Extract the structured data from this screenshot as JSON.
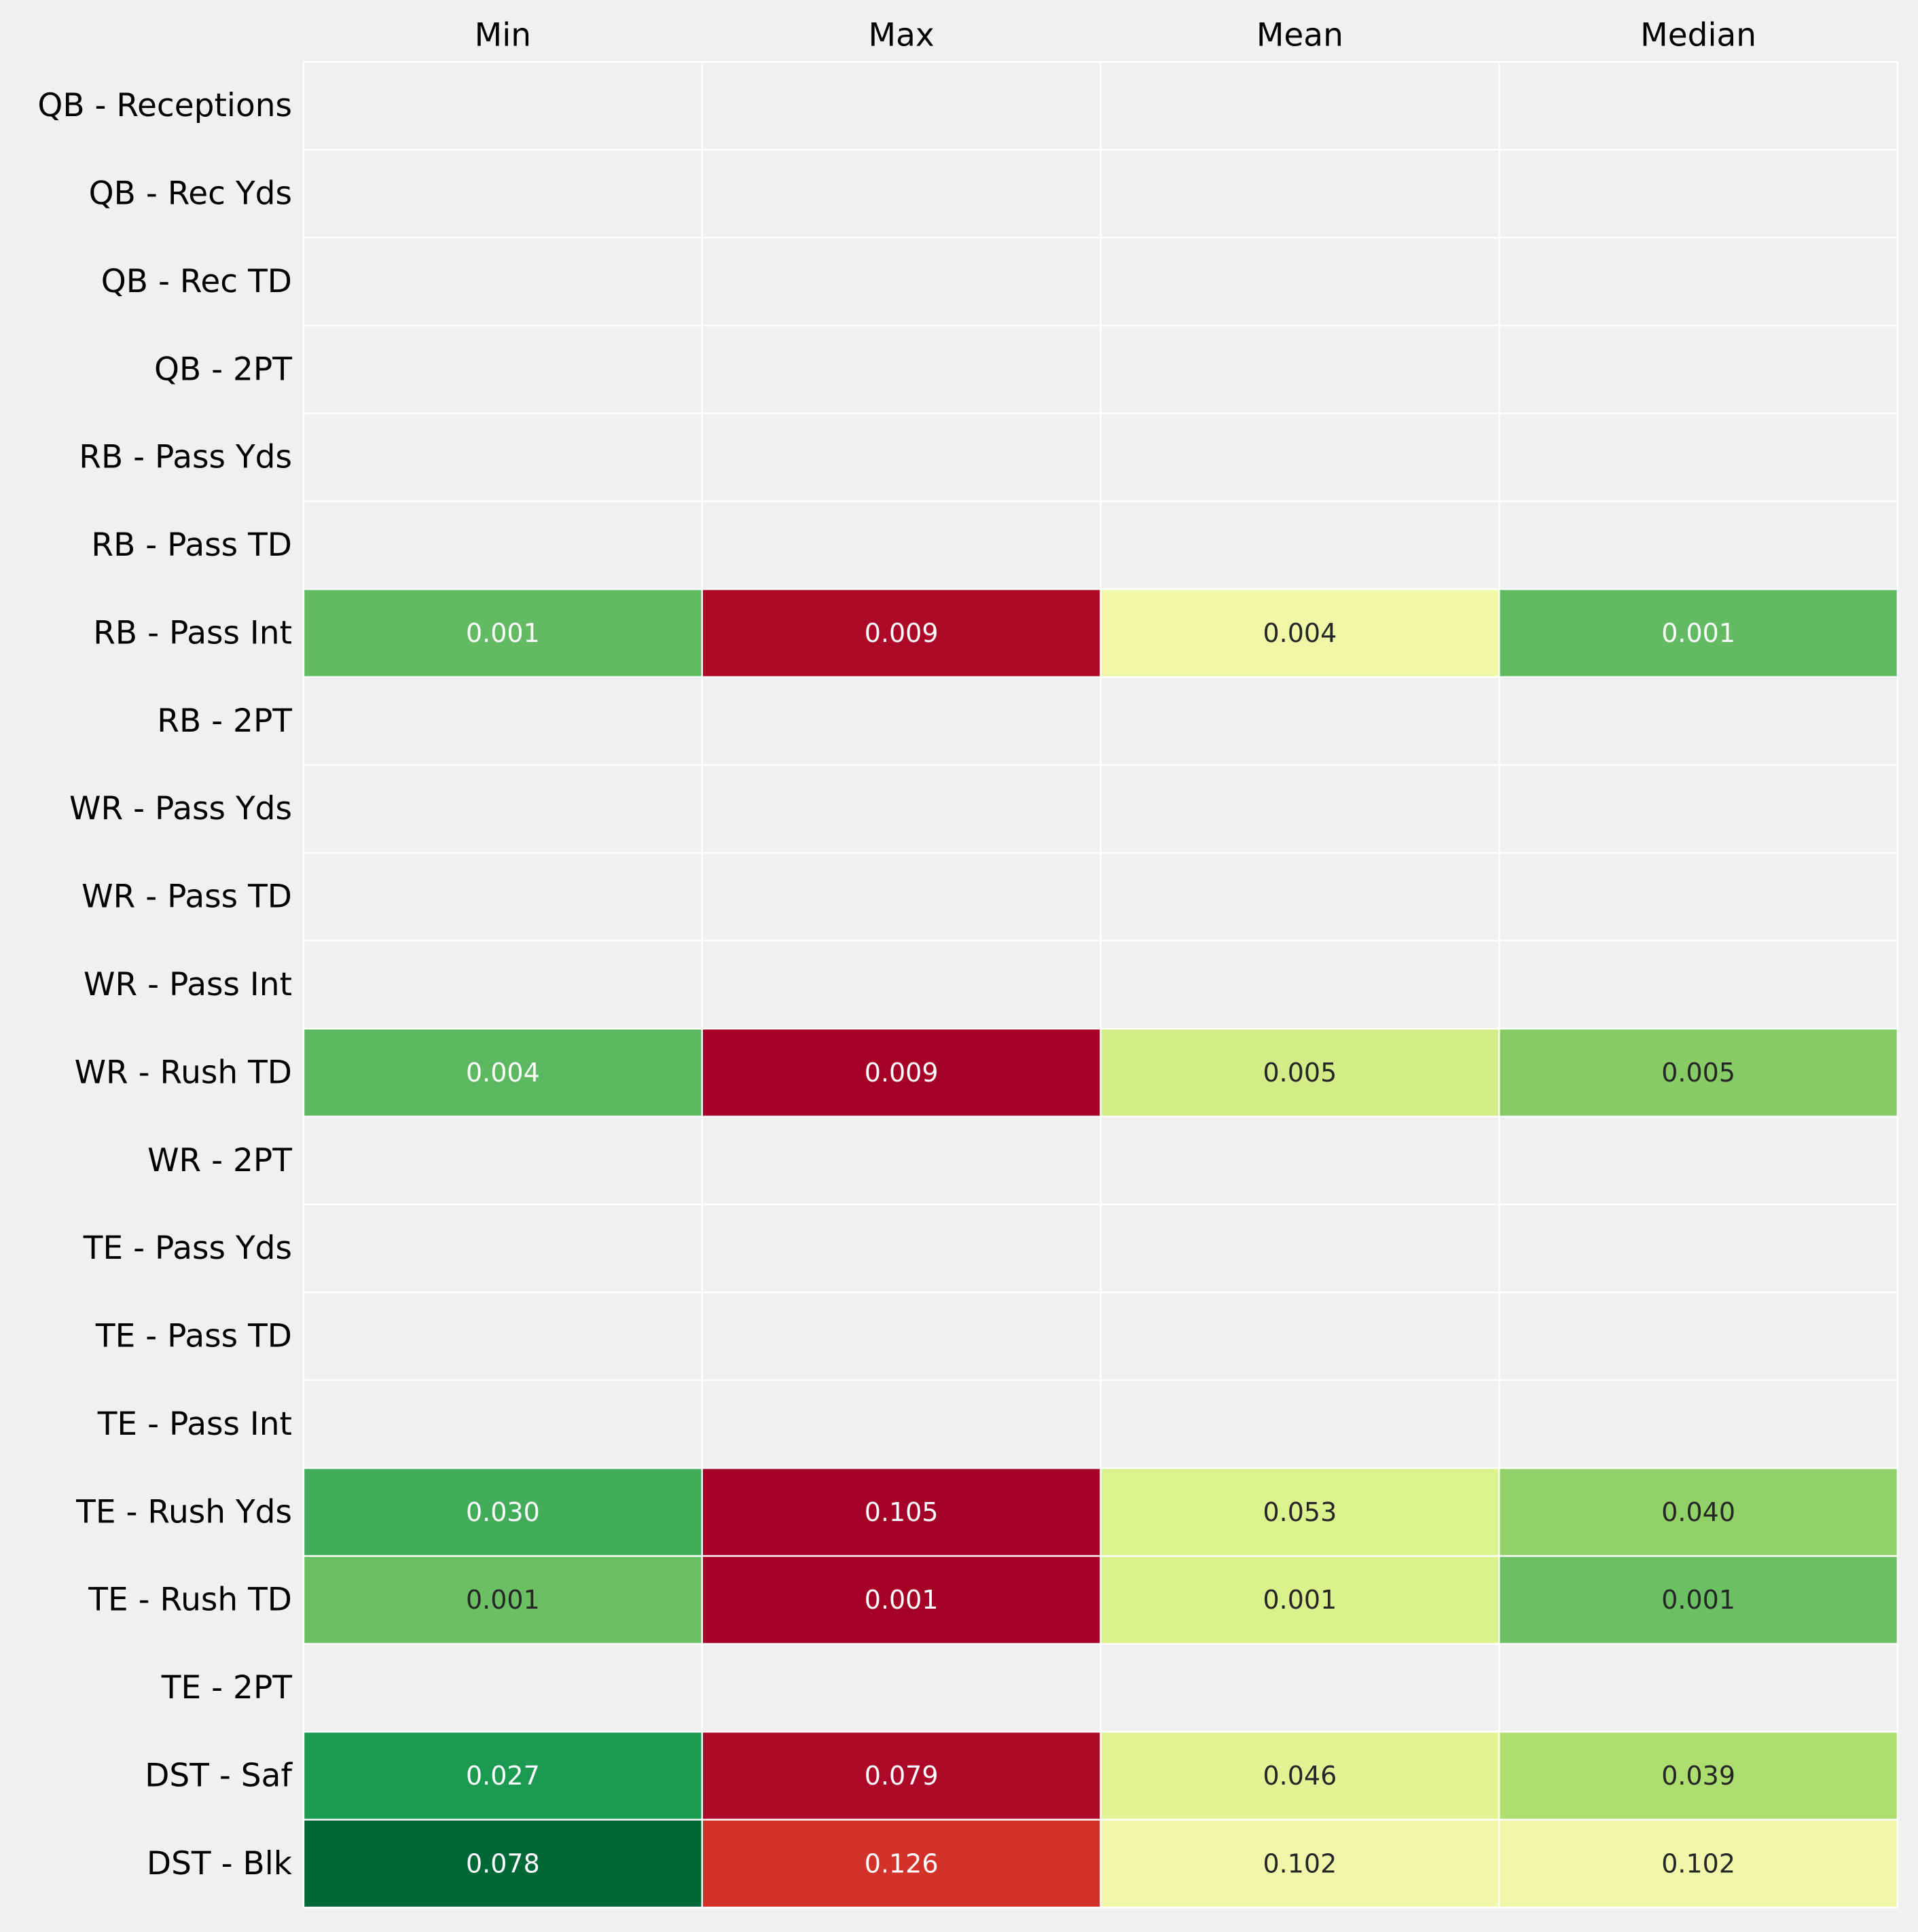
{
  "chart_data": {
    "type": "heatmap",
    "title": "",
    "xlabel": "",
    "ylabel": "",
    "columns": [
      "Min",
      "Max",
      "Mean",
      "Median"
    ],
    "rows": [
      "QB - Receptions",
      "QB - Rec Yds",
      "QB - Rec TD",
      "QB - 2PT",
      "RB - Pass Yds",
      "RB - Pass TD",
      "RB - Pass Int",
      "RB - 2PT",
      "WR - Pass Yds",
      "WR - Pass TD",
      "WR - Pass Int",
      "WR - Rush TD",
      "WR - 2PT",
      "TE - Pass Yds",
      "TE - Pass TD",
      "TE - Pass Int",
      "TE - Rush Yds",
      "TE - Rush TD",
      "TE - 2PT",
      "DST - Saf",
      "DST - Blk"
    ],
    "values": [
      [
        null,
        null,
        null,
        null
      ],
      [
        null,
        null,
        null,
        null
      ],
      [
        null,
        null,
        null,
        null
      ],
      [
        null,
        null,
        null,
        null
      ],
      [
        null,
        null,
        null,
        null
      ],
      [
        null,
        null,
        null,
        null
      ],
      [
        "0.001",
        "0.009",
        "0.004",
        "0.001"
      ],
      [
        null,
        null,
        null,
        null
      ],
      [
        null,
        null,
        null,
        null
      ],
      [
        null,
        null,
        null,
        null
      ],
      [
        null,
        null,
        null,
        null
      ],
      [
        "0.004",
        "0.009",
        "0.005",
        "0.005"
      ],
      [
        null,
        null,
        null,
        null
      ],
      [
        null,
        null,
        null,
        null
      ],
      [
        null,
        null,
        null,
        null
      ],
      [
        null,
        null,
        null,
        null
      ],
      [
        "0.030",
        "0.105",
        "0.053",
        "0.040"
      ],
      [
        "0.001",
        "0.001",
        "0.001",
        "0.001"
      ],
      [
        null,
        null,
        null,
        null
      ],
      [
        "0.027",
        "0.079",
        "0.046",
        "0.039"
      ],
      [
        "0.078",
        "0.126",
        "0.102",
        "0.102"
      ]
    ],
    "cell_colors": [
      [
        null,
        null,
        null,
        null
      ],
      [
        null,
        null,
        null,
        null
      ],
      [
        null,
        null,
        null,
        null
      ],
      [
        null,
        null,
        null,
        null
      ],
      [
        null,
        null,
        null,
        null
      ],
      [
        null,
        null,
        null,
        null
      ],
      [
        "#62bb62",
        "#ad0827",
        "#eef8a7",
        "#62bb62"
      ],
      [
        null,
        null,
        null,
        null
      ],
      [
        null,
        null,
        null,
        null
      ],
      [
        null,
        null,
        null,
        null
      ],
      [
        null,
        null,
        null,
        null
      ],
      [
        "#5db961",
        "#a50026",
        "#d3ec87",
        "#86cb66"
      ],
      [
        null,
        null,
        null,
        null
      ],
      [
        null,
        null,
        null,
        null
      ],
      [
        null,
        null,
        null,
        null
      ],
      [
        null,
        null,
        null,
        null
      ],
      [
        "#42ac5a",
        "#a50026",
        "#ddf18e",
        "#92d068"
      ],
      [
        "#6cc064",
        "#a50026",
        "#dcf08c",
        "#6cc064"
      ],
      [
        null,
        null,
        null,
        null
      ],
      [
        "#1d9a52",
        "#ad0827",
        "#e2f295",
        "#aedd70"
      ],
      [
        "#006837",
        "#d3322b",
        "#eff8aa",
        "#eff8aa"
      ]
    ],
    "text_colors": [
      [
        null,
        null,
        null,
        null
      ],
      [
        null,
        null,
        null,
        null
      ],
      [
        null,
        null,
        null,
        null
      ],
      [
        null,
        null,
        null,
        null
      ],
      [
        null,
        null,
        null,
        null
      ],
      [
        null,
        null,
        null,
        null
      ],
      [
        "#ffffff",
        "#ffffff",
        "#262626",
        "#ffffff"
      ],
      [
        null,
        null,
        null,
        null
      ],
      [
        null,
        null,
        null,
        null
      ],
      [
        null,
        null,
        null,
        null
      ],
      [
        null,
        null,
        null,
        null
      ],
      [
        "#ffffff",
        "#ffffff",
        "#262626",
        "#262626"
      ],
      [
        null,
        null,
        null,
        null
      ],
      [
        null,
        null,
        null,
        null
      ],
      [
        null,
        null,
        null,
        null
      ],
      [
        null,
        null,
        null,
        null
      ],
      [
        "#ffffff",
        "#ffffff",
        "#262626",
        "#262626"
      ],
      [
        "#262626",
        "#ffffff",
        "#262626",
        "#262626"
      ],
      [
        null,
        null,
        null,
        null
      ],
      [
        "#ffffff",
        "#ffffff",
        "#262626",
        "#262626"
      ],
      [
        "#ffffff",
        "#ffffff",
        "#262626",
        "#262626"
      ]
    ],
    "colormap": "RdYlGn_r",
    "missing_color": "#f0f0f0",
    "grid_color": "#ffffff",
    "label_color": "#000000"
  }
}
